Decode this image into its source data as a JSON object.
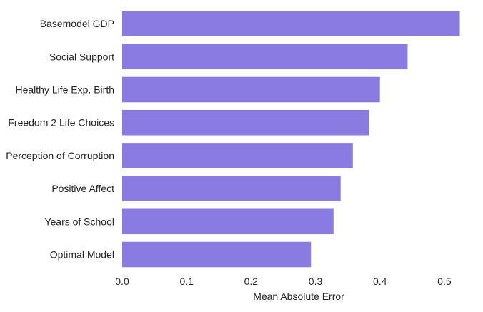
{
  "chart_data": {
    "type": "bar",
    "orientation": "horizontal",
    "categories": [
      "Basemodel GDP",
      "Social Support",
      "Healthy Life Exp. Birth",
      "Freedom 2 Life Choices",
      "Perception of Corruption",
      "Positive Affect",
      "Years of School",
      "Optimal Model"
    ],
    "values": [
      0.524,
      0.443,
      0.4,
      0.383,
      0.358,
      0.339,
      0.328,
      0.293
    ],
    "title": "",
    "xlabel": "Mean Absolute Error",
    "ylabel": "",
    "xlim": [
      0.0,
      0.55
    ],
    "xticks": [
      "0.0",
      "0.1",
      "0.2",
      "0.3",
      "0.4",
      "0.5"
    ],
    "grid": false,
    "legend": "none",
    "bar_color": "#8A7BE3"
  }
}
